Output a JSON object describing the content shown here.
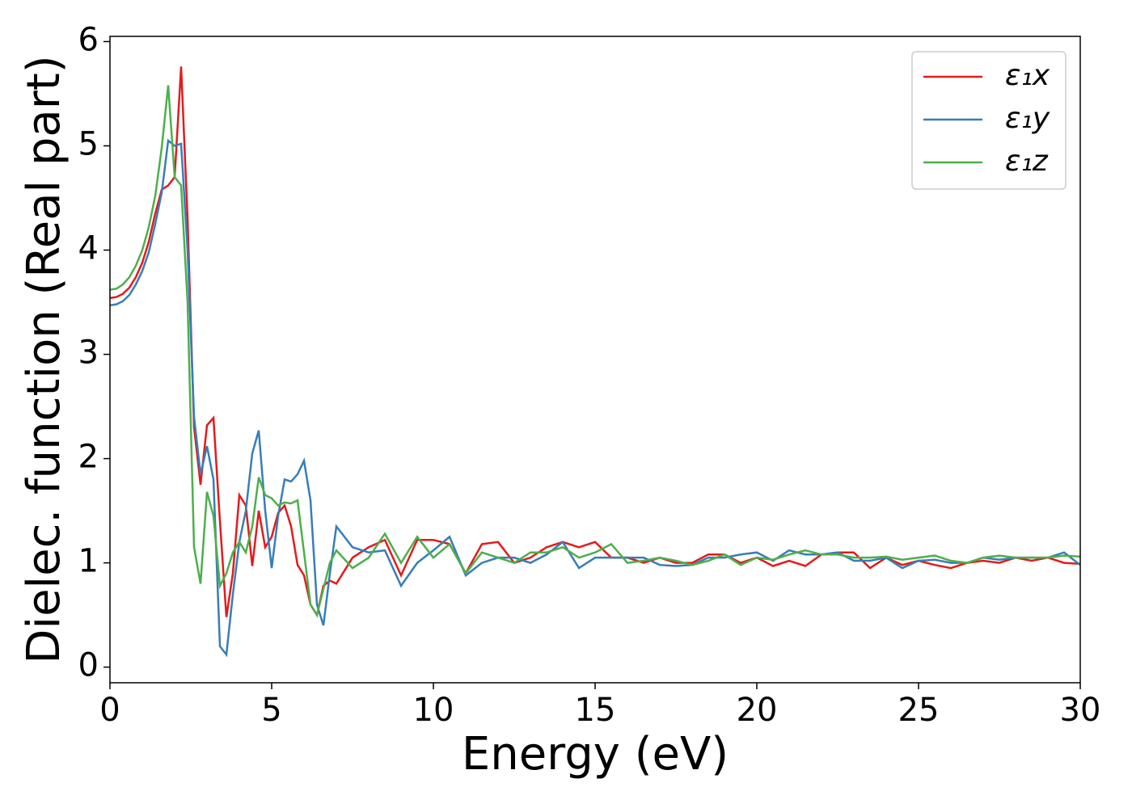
{
  "chart_data": {
    "type": "line",
    "xlabel": "Energy (eV)",
    "ylabel": "Dielec. function (Real part)",
    "x": [
      0,
      0.2,
      0.4,
      0.6,
      0.8,
      1.0,
      1.2,
      1.4,
      1.6,
      1.8,
      2.0,
      2.2,
      2.4,
      2.6,
      2.8,
      3.0,
      3.2,
      3.4,
      3.6,
      3.8,
      4.0,
      4.2,
      4.4,
      4.6,
      4.8,
      5.0,
      5.2,
      5.4,
      5.6,
      5.8,
      6.0,
      6.2,
      6.4,
      6.6,
      6.8,
      7.0,
      7.5,
      8,
      8.5,
      9,
      9.5,
      10,
      10.5,
      11,
      11.5,
      12,
      12.5,
      13,
      13.5,
      14,
      14.5,
      15,
      15.5,
      16,
      16.5,
      17,
      17.5,
      18,
      18.5,
      19,
      19.5,
      20,
      20.5,
      21,
      21.5,
      22,
      22.5,
      23,
      23.5,
      24,
      24.5,
      25,
      25.5,
      26,
      26.5,
      27,
      27.5,
      28,
      28.5,
      29,
      29.5,
      30
    ],
    "series": [
      {
        "name": "ε₁x",
        "color": "#e41a1c",
        "values": [
          3.54,
          3.55,
          3.58,
          3.64,
          3.74,
          3.88,
          4.08,
          4.35,
          4.58,
          4.62,
          4.7,
          5.76,
          4.3,
          2.3,
          1.75,
          2.32,
          2.39,
          1.4,
          0.48,
          0.9,
          1.65,
          1.55,
          0.97,
          1.5,
          1.15,
          1.25,
          1.48,
          1.55,
          1.35,
          0.98,
          0.88,
          0.6,
          0.5,
          0.78,
          0.83,
          0.8,
          1.05,
          1.15,
          1.22,
          0.88,
          1.22,
          1.22,
          1.18,
          0.9,
          1.18,
          1.2,
          1.0,
          1.05,
          1.15,
          1.2,
          1.15,
          1.2,
          1.05,
          1.05,
          1.0,
          1.05,
          1.0,
          1.0,
          1.08,
          1.08,
          1.0,
          1.05,
          0.97,
          1.02,
          0.97,
          1.08,
          1.1,
          1.1,
          0.95,
          1.05,
          0.98,
          1.02,
          0.98,
          0.95,
          1.0,
          1.02,
          1.0,
          1.05,
          1.02,
          1.05,
          1.0,
          0.99
        ]
      },
      {
        "name": "ε₁y",
        "color": "#377eb8",
        "values": [
          3.47,
          3.48,
          3.51,
          3.57,
          3.67,
          3.8,
          3.98,
          4.25,
          4.55,
          5.05,
          5.0,
          5.02,
          4.0,
          2.4,
          1.85,
          2.12,
          1.8,
          0.2,
          0.12,
          0.7,
          1.2,
          1.5,
          2.05,
          2.27,
          1.5,
          0.95,
          1.45,
          1.8,
          1.78,
          1.85,
          1.98,
          1.6,
          0.6,
          0.4,
          0.9,
          1.35,
          1.15,
          1.1,
          1.12,
          0.78,
          1.0,
          1.12,
          1.25,
          0.88,
          1.0,
          1.05,
          1.05,
          1.0,
          1.08,
          1.2,
          0.95,
          1.05,
          1.05,
          1.05,
          1.05,
          0.98,
          0.97,
          0.98,
          1.05,
          1.05,
          1.08,
          1.1,
          1.02,
          1.12,
          1.08,
          1.08,
          1.1,
          1.02,
          1.02,
          1.05,
          0.95,
          1.02,
          1.03,
          1.0,
          1.0,
          1.05,
          1.03,
          1.05,
          1.05,
          1.05,
          1.1,
          0.98
        ]
      },
      {
        "name": "ε₁z",
        "color": "#4daf4a",
        "values": [
          3.62,
          3.63,
          3.67,
          3.74,
          3.85,
          4.0,
          4.22,
          4.52,
          4.98,
          5.58,
          4.7,
          4.62,
          3.5,
          1.15,
          0.8,
          1.68,
          1.45,
          0.78,
          0.9,
          1.1,
          1.2,
          1.1,
          1.35,
          1.82,
          1.65,
          1.62,
          1.55,
          1.58,
          1.57,
          1.6,
          1.1,
          0.6,
          0.5,
          0.75,
          1.0,
          1.12,
          0.95,
          1.05,
          1.28,
          1.0,
          1.25,
          1.05,
          1.18,
          0.9,
          1.1,
          1.05,
          1.0,
          1.1,
          1.1,
          1.15,
          1.05,
          1.1,
          1.18,
          1.0,
          1.02,
          1.05,
          1.02,
          0.98,
          1.02,
          1.08,
          0.98,
          1.05,
          1.03,
          1.08,
          1.12,
          1.08,
          1.08,
          1.05,
          1.05,
          1.06,
          1.03,
          1.05,
          1.07,
          1.02,
          1.0,
          1.05,
          1.07,
          1.05,
          1.05,
          1.05,
          1.07,
          1.06
        ]
      }
    ],
    "xlim": [
      0,
      30
    ],
    "xticks": [
      0,
      5,
      10,
      15,
      20,
      25,
      30
    ],
    "ylim": [
      -0.15,
      6.05
    ],
    "yticks": [
      0,
      1,
      2,
      3,
      4,
      5,
      6
    ],
    "legend": "upper right"
  }
}
